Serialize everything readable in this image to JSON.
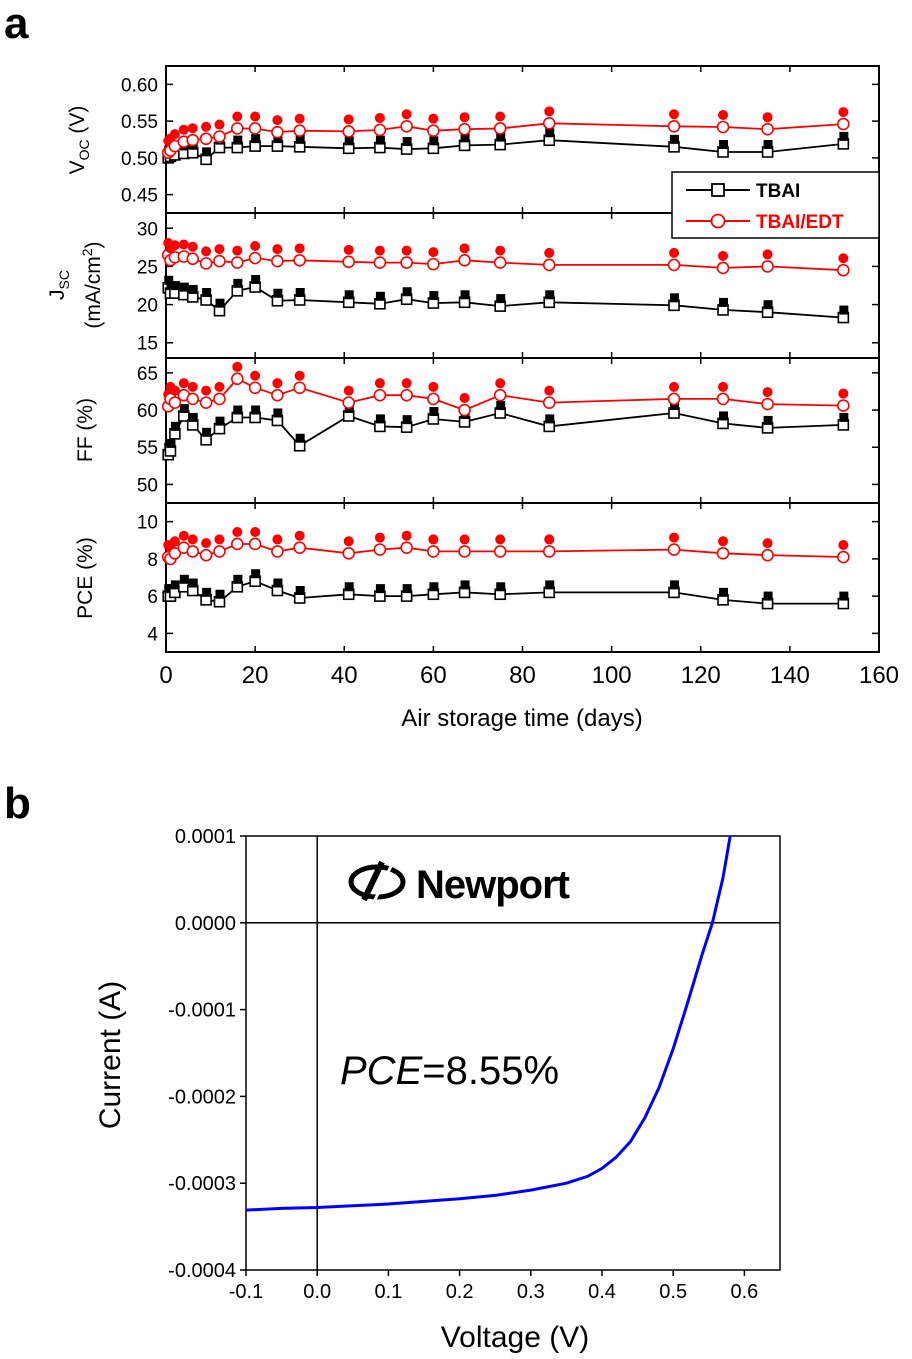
{
  "panel_labels": {
    "a": "a",
    "b": "b"
  },
  "colors": {
    "tbai": "#000000",
    "tbai_edt": "#ff0000",
    "iv_curve": "#0000ff"
  },
  "panel_a": {
    "xlabel": "Air storage time (days)",
    "xticks": [
      0,
      20,
      40,
      60,
      80,
      100,
      120,
      140,
      160
    ],
    "legend": {
      "placement": "right of top subplot",
      "entries": [
        "TBAI",
        "TBAI/EDT"
      ]
    },
    "ylabels": {
      "voc_main": "V",
      "voc_sub": "OC",
      "voc_unit": " (V)",
      "jsc_main": "J",
      "jsc_sub": "SC",
      "jsc_unit_a": "(mA/cm",
      "jsc_unit_sup": "2",
      "jsc_unit_b": ")",
      "ff": "FF (%)",
      "pce": "PCE (%)"
    }
  },
  "panel_b": {
    "xlabel": "Voltage (V)",
    "ylabel": "Current (A)",
    "annotation_italic": "PCE",
    "annotation_value": "=8.55%",
    "logo_text": "Newport"
  },
  "chart_data": [
    {
      "type": "line",
      "title": "",
      "ylabel": "VOC (V)",
      "xlim": [
        0,
        160
      ],
      "ylim": [
        0.425,
        0.625
      ],
      "yticks": [
        0.45,
        0.5,
        0.55,
        0.6
      ],
      "ytick_labels": [
        "0.45",
        "0.50",
        "0.55",
        "0.60"
      ],
      "x": [
        0.5,
        1,
        2,
        4,
        6,
        9,
        12,
        16,
        20,
        25,
        30,
        41,
        48,
        54,
        60,
        67,
        75,
        86,
        114,
        125,
        135,
        152
      ],
      "series": [
        {
          "name": "TBAI",
          "marker": "square",
          "values": [
            0.5,
            0.502,
            0.504,
            0.506,
            0.507,
            0.498,
            0.514,
            0.514,
            0.516,
            0.516,
            0.515,
            0.513,
            0.514,
            0.512,
            0.513,
            0.517,
            0.518,
            0.524,
            0.515,
            0.508,
            0.508,
            0.519
          ]
        },
        {
          "name": "TBAI/EDT",
          "marker": "circle",
          "values": [
            0.507,
            0.51,
            0.516,
            0.522,
            0.524,
            0.526,
            0.529,
            0.54,
            0.54,
            0.535,
            0.537,
            0.536,
            0.538,
            0.543,
            0.537,
            0.539,
            0.54,
            0.547,
            0.543,
            0.542,
            0.539,
            0.546
          ]
        }
      ]
    },
    {
      "type": "line",
      "title": "",
      "ylabel": "JSC (mA/cm2)",
      "xlim": [
        0,
        160
      ],
      "ylim": [
        13,
        32
      ],
      "yticks": [
        15,
        20,
        25,
        30
      ],
      "ytick_labels": [
        "15",
        "20",
        "25",
        "30"
      ],
      "x": [
        0.5,
        1,
        2,
        4,
        6,
        9,
        12,
        16,
        20,
        25,
        30,
        41,
        48,
        54,
        60,
        67,
        75,
        86,
        114,
        125,
        135,
        152
      ],
      "series": [
        {
          "name": "TBAI",
          "marker": "square",
          "values": [
            22.2,
            21.5,
            21.5,
            21.3,
            21.0,
            20.6,
            19.2,
            21.8,
            22.3,
            20.5,
            20.6,
            20.3,
            20.1,
            20.7,
            20.2,
            20.3,
            19.8,
            20.3,
            19.9,
            19.3,
            19.0,
            18.3
          ]
        },
        {
          "name": "TBAI/EDT",
          "marker": "circle",
          "values": [
            26.5,
            25.8,
            26.2,
            26.3,
            26.0,
            25.4,
            25.7,
            25.5,
            26.1,
            25.7,
            25.8,
            25.6,
            25.5,
            25.5,
            25.3,
            25.8,
            25.5,
            25.2,
            25.2,
            24.8,
            25.0,
            24.5
          ]
        }
      ]
    },
    {
      "type": "line",
      "title": "",
      "ylabel": "FF (%)",
      "xlim": [
        0,
        160
      ],
      "ylim": [
        47.5,
        67
      ],
      "yticks": [
        50,
        55,
        60,
        65
      ],
      "ytick_labels": [
        "50",
        "55",
        "60",
        "65"
      ],
      "x": [
        0.5,
        1,
        2,
        4,
        6,
        9,
        12,
        16,
        20,
        25,
        30,
        41,
        48,
        54,
        60,
        67,
        75,
        86,
        114,
        125,
        135,
        152
      ],
      "series": [
        {
          "name": "TBAI",
          "marker": "square",
          "values": [
            54.0,
            54.5,
            56.8,
            59.2,
            58.0,
            56.0,
            57.5,
            59.0,
            59.0,
            58.6,
            55.2,
            59.2,
            57.8,
            57.7,
            58.8,
            58.4,
            59.6,
            57.8,
            59.6,
            58.2,
            57.6,
            58.0
          ]
        },
        {
          "name": "TBAI/EDT",
          "marker": "circle",
          "values": [
            60.5,
            61.5,
            61.0,
            62.0,
            61.5,
            61.0,
            61.5,
            64.2,
            63.0,
            62.0,
            63.0,
            61.0,
            62.0,
            62.0,
            61.5,
            60.0,
            62.0,
            61.0,
            61.5,
            61.5,
            60.8,
            60.6
          ]
        }
      ]
    },
    {
      "type": "line",
      "title": "",
      "ylabel": "PCE (%)",
      "xlim": [
        0,
        160
      ],
      "ylim": [
        3,
        11
      ],
      "yticks": [
        4,
        6,
        8,
        10
      ],
      "ytick_labels": [
        "4",
        "6",
        "8",
        "10"
      ],
      "x": [
        0.5,
        1,
        2,
        4,
        6,
        9,
        12,
        16,
        20,
        25,
        30,
        41,
        48,
        54,
        60,
        67,
        75,
        86,
        114,
        125,
        135,
        152
      ],
      "series": [
        {
          "name": "TBAI",
          "marker": "square",
          "values": [
            6.0,
            6.0,
            6.2,
            6.5,
            6.3,
            5.8,
            5.7,
            6.5,
            6.8,
            6.3,
            5.9,
            6.1,
            6.0,
            6.0,
            6.1,
            6.2,
            6.1,
            6.2,
            6.2,
            5.8,
            5.6,
            5.6
          ]
        },
        {
          "name": "TBAI/EDT",
          "marker": "circle",
          "values": [
            8.1,
            8.0,
            8.3,
            8.6,
            8.4,
            8.2,
            8.4,
            8.8,
            8.8,
            8.4,
            8.6,
            8.3,
            8.5,
            8.6,
            8.4,
            8.4,
            8.4,
            8.4,
            8.5,
            8.3,
            8.2,
            8.1
          ]
        }
      ]
    },
    {
      "type": "line",
      "title": "",
      "xlabel": "Voltage (V)",
      "ylabel": "Current (A)",
      "xlim": [
        -0.1,
        0.65
      ],
      "ylim": [
        -0.0004,
        0.0001
      ],
      "xticks": [
        -0.1,
        0.0,
        0.1,
        0.2,
        0.3,
        0.4,
        0.5,
        0.6
      ],
      "xtick_labels": [
        "-0.1",
        "0.0",
        "0.1",
        "0.2",
        "0.3",
        "0.4",
        "0.5",
        "0.6"
      ],
      "yticks": [
        -0.0004,
        -0.0003,
        -0.0002,
        -0.0001,
        0.0,
        0.0001
      ],
      "ytick_labels": [
        "-0.0004",
        "-0.0003",
        "-0.0002",
        "-0.0001",
        "0.0000",
        "0.0001"
      ],
      "x": [
        -0.1,
        -0.05,
        0.0,
        0.05,
        0.1,
        0.15,
        0.2,
        0.25,
        0.3,
        0.35,
        0.38,
        0.4,
        0.42,
        0.44,
        0.46,
        0.48,
        0.5,
        0.52,
        0.54,
        0.555,
        0.57,
        0.58
      ],
      "series": [
        {
          "name": "",
          "values": [
            -0.000331,
            -0.000329,
            -0.000328,
            -0.000326,
            -0.000324,
            -0.000321,
            -0.000318,
            -0.000314,
            -0.000308,
            -0.0003,
            -0.000292,
            -0.000283,
            -0.00027,
            -0.000252,
            -0.000225,
            -0.00019,
            -0.000145,
            -9.3e-05,
            -3.8e-05,
            0.0,
            5.2e-05,
            0.0001
          ]
        }
      ]
    }
  ]
}
